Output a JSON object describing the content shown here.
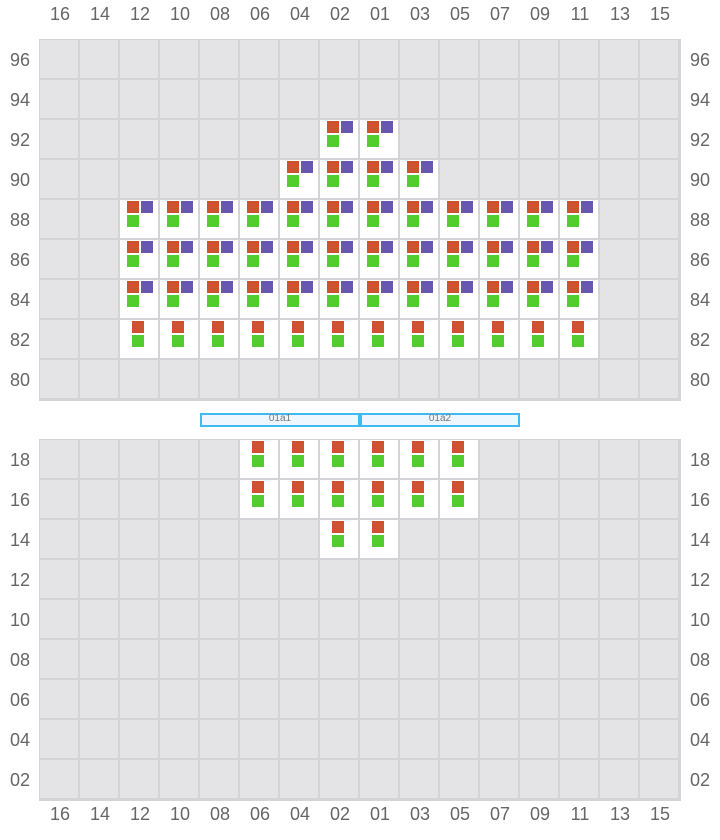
{
  "columns": [
    "16",
    "14",
    "12",
    "10",
    "08",
    "06",
    "04",
    "02",
    "01",
    "03",
    "05",
    "07",
    "09",
    "11",
    "13",
    "15"
  ],
  "colors": {
    "orange": "#cc5230",
    "purple": "#6757b0",
    "green": "#52cc2e",
    "empty": "#e4e4e7",
    "occupied": "#ffffff",
    "bar_border": "#3dbbf0"
  },
  "sections": [
    {
      "rows": [
        {
          "label": "96",
          "occupied": [],
          "slots": []
        },
        {
          "label": "94",
          "occupied": [],
          "slots": []
        },
        {
          "label": "92",
          "occupied": [
            "02",
            "01"
          ],
          "slots": [
            "orange",
            "purple",
            "green"
          ]
        },
        {
          "label": "90",
          "occupied": [
            "04",
            "02",
            "01",
            "03"
          ],
          "slots": [
            "orange",
            "purple",
            "green"
          ]
        },
        {
          "label": "88",
          "occupied": [
            "12",
            "10",
            "08",
            "06",
            "04",
            "02",
            "01",
            "03",
            "05",
            "07",
            "09",
            "11"
          ],
          "slots": [
            "orange",
            "purple",
            "green"
          ]
        },
        {
          "label": "86",
          "occupied": [
            "12",
            "10",
            "08",
            "06",
            "04",
            "02",
            "01",
            "03",
            "05",
            "07",
            "09",
            "11"
          ],
          "slots": [
            "orange",
            "purple",
            "green"
          ]
        },
        {
          "label": "84",
          "occupied": [
            "12",
            "10",
            "08",
            "06",
            "04",
            "02",
            "01",
            "03",
            "05",
            "07",
            "09",
            "11"
          ],
          "slots": [
            "orange",
            "purple",
            "green"
          ]
        },
        {
          "label": "82",
          "occupied": [
            "12",
            "10",
            "08",
            "06",
            "04",
            "02",
            "01",
            "03",
            "05",
            "07",
            "09",
            "11"
          ],
          "slots": [
            "orange",
            "green"
          ]
        },
        {
          "label": "80",
          "occupied": [],
          "slots": []
        }
      ]
    },
    {
      "rows": [
        {
          "label": "18",
          "occupied": [
            "06",
            "04",
            "02",
            "01",
            "03",
            "05"
          ],
          "slots": [
            "orange",
            "green"
          ]
        },
        {
          "label": "16",
          "occupied": [
            "06",
            "04",
            "02",
            "01",
            "03",
            "05"
          ],
          "slots": [
            "orange",
            "green"
          ]
        },
        {
          "label": "14",
          "occupied": [
            "02",
            "01"
          ],
          "slots": [
            "orange",
            "green"
          ]
        },
        {
          "label": "12",
          "occupied": [],
          "slots": []
        },
        {
          "label": "10",
          "occupied": [],
          "slots": []
        },
        {
          "label": "08",
          "occupied": [],
          "slots": []
        },
        {
          "label": "06",
          "occupied": [],
          "slots": []
        },
        {
          "label": "04",
          "occupied": [],
          "slots": []
        },
        {
          "label": "02",
          "occupied": [],
          "slots": []
        }
      ]
    }
  ],
  "zones": [
    {
      "label": "01a1",
      "from": "08",
      "to": "02"
    },
    {
      "label": "01a2",
      "from": "01",
      "to": "07"
    }
  ]
}
